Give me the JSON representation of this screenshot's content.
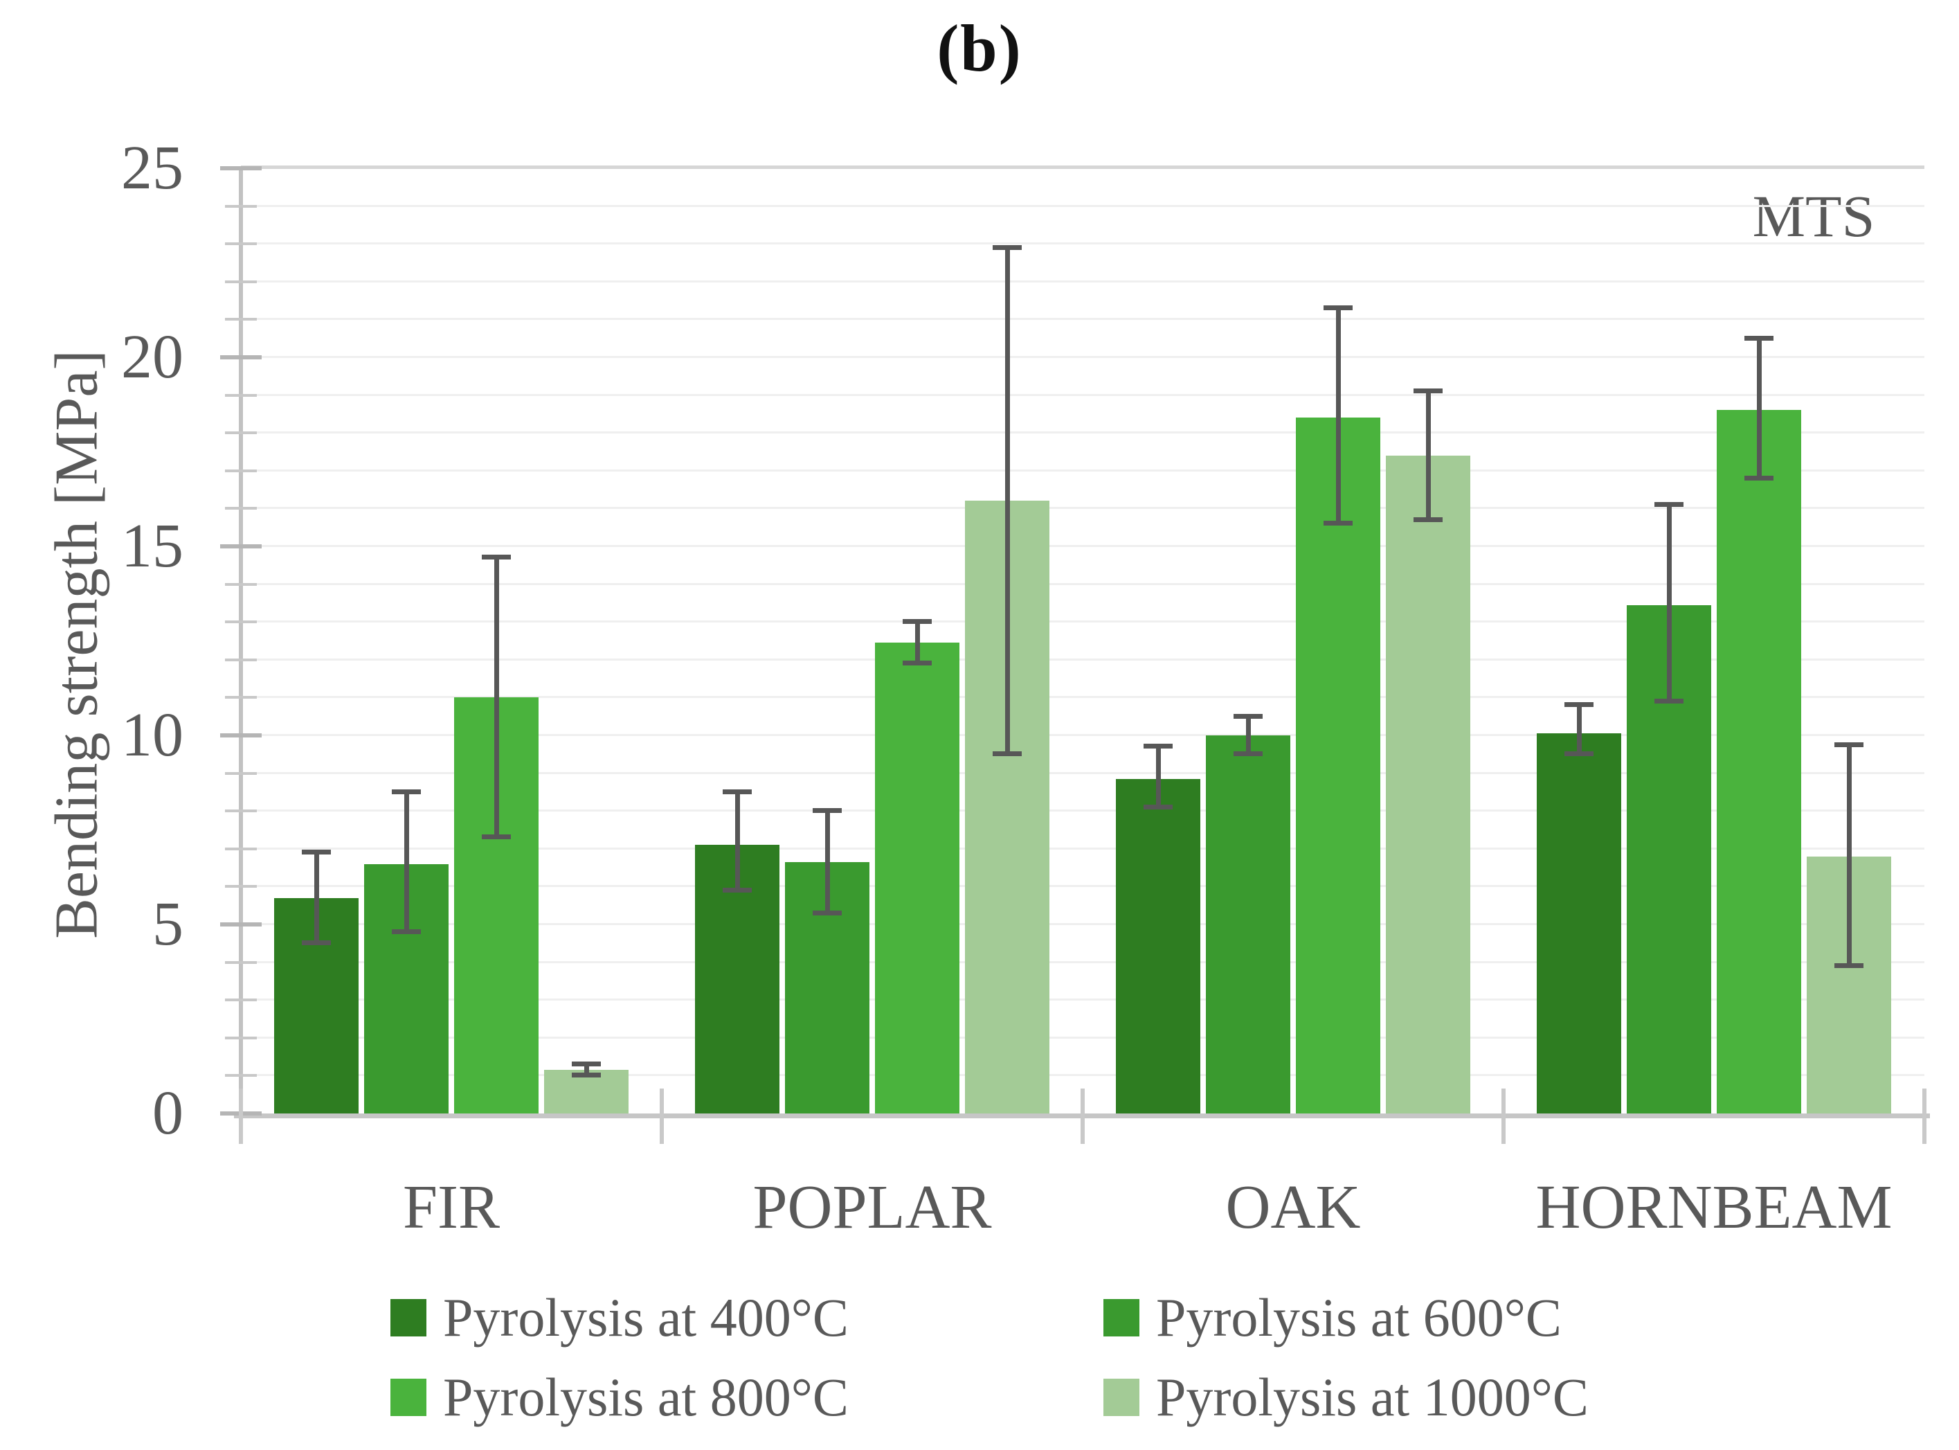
{
  "figure_label": "(b)",
  "annotation": "MTS",
  "chart_data": {
    "type": "bar",
    "title": "(b)",
    "xlabel": "",
    "ylabel": "Bending strength [MPa]",
    "ylim": [
      0,
      25
    ],
    "y_major_ticks": [
      0,
      5,
      10,
      15,
      20,
      25
    ],
    "y_minor_step": 1,
    "grid": "horizontal, minor every 1 MPa, light gray",
    "legend_position": "bottom, 2 columns",
    "annotation_top_right": "MTS",
    "categories": [
      "FIR",
      "POPLAR",
      "OAK",
      "HORNBEAM"
    ],
    "series": [
      {
        "name": "Pyrolysis at 400°C",
        "color": "#2E7D21",
        "values": [
          5.7,
          7.1,
          8.85,
          10.05
        ],
        "error_low": [
          4.5,
          5.9,
          8.1,
          9.5
        ],
        "error_high": [
          6.9,
          8.5,
          9.7,
          10.8
        ]
      },
      {
        "name": "Pyrolysis at 600°C",
        "color": "#3A9A2F",
        "values": [
          6.6,
          6.65,
          10.0,
          13.45
        ],
        "error_low": [
          4.8,
          5.3,
          9.5,
          10.9
        ],
        "error_high": [
          8.5,
          8.0,
          10.5,
          16.1
        ]
      },
      {
        "name": "Pyrolysis at 800°C",
        "color": "#4AB33D",
        "values": [
          11.0,
          12.45,
          18.4,
          18.6
        ],
        "error_low": [
          7.3,
          11.9,
          15.6,
          16.8
        ],
        "error_high": [
          14.7,
          13.0,
          21.3,
          20.5
        ]
      },
      {
        "name": "Pyrolysis at 1000°C",
        "color": "#A3CB96",
        "values": [
          1.15,
          16.2,
          17.4,
          6.8
        ],
        "error_low": [
          1.0,
          9.5,
          15.7,
          3.9
        ],
        "error_high": [
          1.3,
          22.9,
          19.1,
          9.75
        ]
      }
    ]
  },
  "colors": {
    "text_gray": "#595959",
    "error_bar": "#575757",
    "axis_line": "#C6C6C6",
    "gridline_minor": "#EFEFEF",
    "gridline_top": "#D6D6D6",
    "background": "#FFFFFF",
    "title_text": "#111111"
  }
}
